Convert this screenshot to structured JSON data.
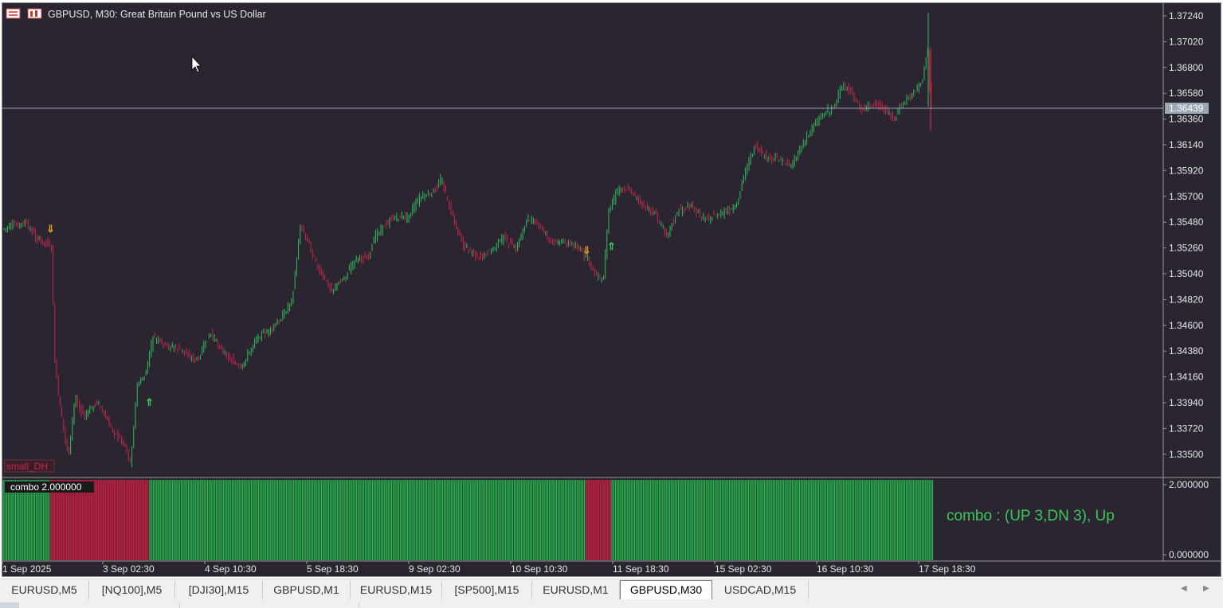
{
  "chart": {
    "title": "GBPUSD, M30:  Great Britain Pound vs US Dollar",
    "ask_line_label": "1.36439",
    "price_axis": [
      "1.37240",
      "1.37020",
      "1.36800",
      "1.36580",
      "1.36360",
      "1.36140",
      "1.35920",
      "1.35700",
      "1.35480",
      "1.35260",
      "1.35040",
      "1.34820",
      "1.34600",
      "1.34380",
      "1.34160",
      "1.33940",
      "1.33720",
      "1.33500"
    ],
    "time_axis": [
      "1 Sep 2025",
      "3 Sep 02:30",
      "4 Sep 10:30",
      "5 Sep 18:30",
      "9 Sep 02:30",
      "10 Sep 10:30",
      "11 Sep 18:30",
      "15 Sep 02:30",
      "16 Sep 10:30",
      "17 Sep 18:30"
    ],
    "object_label": "small_DH",
    "colors": {
      "background": "#2a2530",
      "bull": "#2fbf5a",
      "bear": "#c8284a",
      "ask_line": "#8fa4b0",
      "signal_up": "#3cc85a",
      "signal_down": "#e6a020"
    },
    "signals": [
      {
        "type": "down",
        "glyph": "⇓"
      },
      {
        "type": "up",
        "glyph": "⇑"
      },
      {
        "type": "down",
        "glyph": "⇓"
      },
      {
        "type": "up",
        "glyph": "⇑"
      }
    ]
  },
  "indicator": {
    "name_label": "combo   2.000000",
    "text": "combo : (UP 3,DN 3), Up",
    "axis_top": "2.000000",
    "axis_bottom": "0.000000"
  },
  "tabs": [
    "EURUSD,M5",
    "[NQ100],M5",
    "[DJI30],M15",
    "GBPUSD,M1",
    "EURUSD,M15",
    "[SP500],M15",
    "EURUSD,M1",
    "GBPUSD,M30",
    "USDCAD,M15"
  ],
  "active_tab": "GBPUSD,M30"
}
